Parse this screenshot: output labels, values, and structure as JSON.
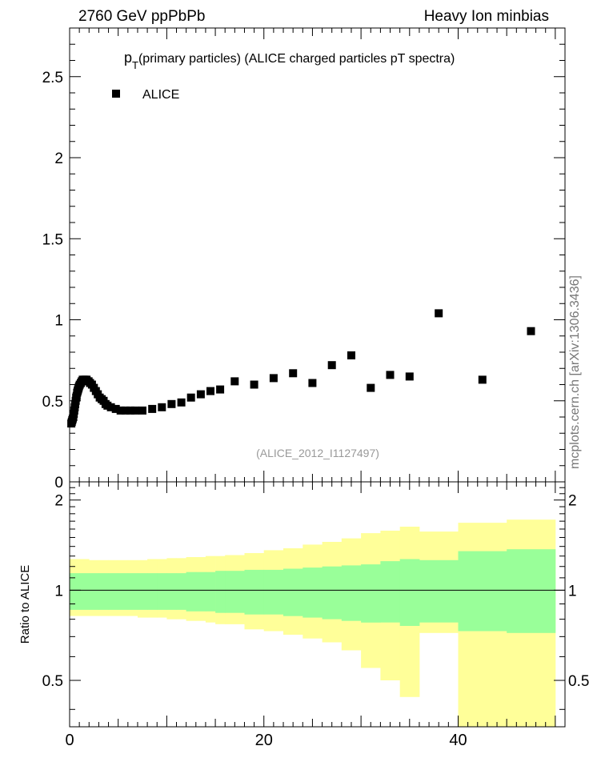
{
  "header": {
    "left_label": "2760 GeV ppPbPb",
    "right_label": "Heavy Ion minbias",
    "side_label": "mcplots.cern.ch [arXiv:1306.3436]"
  },
  "chart_data": [
    {
      "type": "scatter",
      "title_main": "p",
      "title_sub": "T",
      "title_rest": "(primary particles) (ALICE charged particles pT spectra)",
      "annotation": "(ALICE_2012_I1127497)",
      "xlim": [
        0,
        51
      ],
      "ylim": [
        0,
        2.8
      ],
      "y_ticks": [
        0,
        0.5,
        1,
        1.5,
        2,
        2.5
      ],
      "y_tick_labels": [
        "0",
        "0.5",
        "1",
        "1.5",
        "2",
        "2.5"
      ],
      "series": [
        {
          "name": "ALICE",
          "x": [
            0.175,
            0.225,
            0.275,
            0.325,
            0.375,
            0.425,
            0.475,
            0.525,
            0.575,
            0.625,
            0.675,
            0.725,
            0.775,
            0.825,
            0.875,
            0.925,
            0.975,
            1.05,
            1.15,
            1.25,
            1.35,
            1.45,
            1.55,
            1.65,
            1.75,
            1.85,
            1.95,
            2.1,
            2.3,
            2.5,
            2.7,
            2.9,
            3.1,
            3.3,
            3.5,
            3.7,
            3.9,
            4.25,
            4.75,
            5.25,
            5.75,
            6.25,
            6.75,
            7.5,
            8.5,
            9.5,
            10.5,
            11.5,
            12.5,
            13.5,
            14.5,
            15.5,
            17,
            19,
            21,
            23,
            25,
            27,
            29,
            31,
            33,
            35,
            38,
            42.5,
            47.5
          ],
          "y": [
            0.36,
            0.37,
            0.38,
            0.39,
            0.4,
            0.42,
            0.44,
            0.46,
            0.48,
            0.5,
            0.52,
            0.53,
            0.55,
            0.56,
            0.57,
            0.58,
            0.59,
            0.6,
            0.61,
            0.62,
            0.63,
            0.63,
            0.63,
            0.63,
            0.63,
            0.62,
            0.62,
            0.61,
            0.6,
            0.58,
            0.56,
            0.54,
            0.52,
            0.51,
            0.5,
            0.48,
            0.47,
            0.46,
            0.45,
            0.44,
            0.44,
            0.44,
            0.44,
            0.44,
            0.45,
            0.46,
            0.48,
            0.49,
            0.52,
            0.54,
            0.56,
            0.57,
            0.62,
            0.6,
            0.64,
            0.67,
            0.61,
            0.72,
            0.78,
            0.58,
            0.66,
            0.65,
            1.04,
            0.63,
            0.93
          ]
        }
      ],
      "legend": "top-left"
    },
    {
      "type": "area",
      "ylabel": "Ratio to ALICE",
      "xlim": [
        0,
        51
      ],
      "ylim": [
        0.35,
        2.3
      ],
      "x_ticks": [
        0,
        20,
        40
      ],
      "x_tick_labels": [
        "0",
        "20",
        "40"
      ],
      "y_ticks": [
        0.5,
        1,
        2
      ],
      "y_tick_labels": [
        "0.5",
        "1",
        "2"
      ],
      "reference_line": 1,
      "bins": [
        0,
        1,
        2,
        3,
        4,
        5,
        6,
        7,
        8,
        9,
        10,
        11,
        12,
        13,
        14,
        15,
        16,
        18,
        20,
        22,
        24,
        26,
        28,
        30,
        32,
        34,
        36,
        40,
        45,
        50
      ],
      "green_band": {
        "lo": [
          0.86,
          0.86,
          0.86,
          0.86,
          0.86,
          0.86,
          0.86,
          0.86,
          0.86,
          0.86,
          0.86,
          0.86,
          0.85,
          0.85,
          0.85,
          0.84,
          0.84,
          0.83,
          0.83,
          0.82,
          0.81,
          0.8,
          0.79,
          0.78,
          0.78,
          0.76,
          0.78,
          0.73,
          0.72
        ],
        "hi": [
          1.14,
          1.14,
          1.14,
          1.14,
          1.14,
          1.14,
          1.14,
          1.14,
          1.14,
          1.14,
          1.14,
          1.14,
          1.15,
          1.15,
          1.15,
          1.16,
          1.16,
          1.17,
          1.17,
          1.18,
          1.19,
          1.2,
          1.21,
          1.22,
          1.25,
          1.27,
          1.26,
          1.35,
          1.37
        ]
      },
      "yellow_band": {
        "lo": [
          0.82,
          0.82,
          0.82,
          0.82,
          0.82,
          0.82,
          0.82,
          0.81,
          0.81,
          0.81,
          0.8,
          0.8,
          0.79,
          0.79,
          0.78,
          0.77,
          0.77,
          0.74,
          0.73,
          0.71,
          0.69,
          0.67,
          0.63,
          0.55,
          0.5,
          0.44,
          0.72,
          0.35,
          0.35
        ],
        "hi": [
          1.27,
          1.27,
          1.26,
          1.26,
          1.26,
          1.26,
          1.26,
          1.26,
          1.27,
          1.27,
          1.28,
          1.28,
          1.29,
          1.29,
          1.3,
          1.3,
          1.31,
          1.33,
          1.36,
          1.38,
          1.42,
          1.45,
          1.49,
          1.55,
          1.58,
          1.63,
          1.57,
          1.68,
          1.72
        ]
      }
    }
  ],
  "colors": {
    "green": "#99ff99",
    "yellow": "#ffff99",
    "marker": "#000000",
    "annotation": "#999999",
    "side_label": "#777777"
  }
}
